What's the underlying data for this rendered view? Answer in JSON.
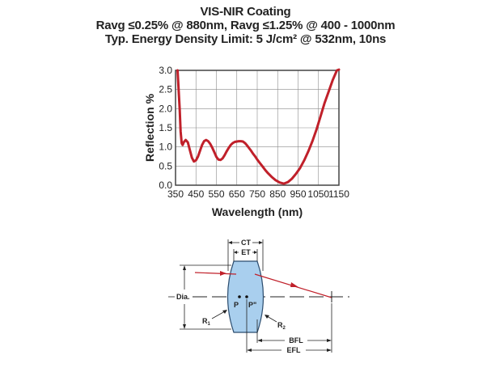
{
  "chart_data": {
    "type": "line",
    "title_lines": [
      "VIS-NIR Coating",
      "Ravg ≤0.25% @ 880nm, Ravg ≤1.25% @ 400 - 1000nm",
      "Typ. Energy Density Limit: 5 J/cm² @ 532nm, 10ns"
    ],
    "xlabel": "Wavelength (nm)",
    "ylabel": "Reflection %",
    "xlim": [
      350,
      1150
    ],
    "ylim": [
      0,
      3.0
    ],
    "x_ticks": [
      "350",
      "450",
      "550",
      "650",
      "750",
      "850",
      "950",
      "1050",
      "1150"
    ],
    "y_ticks": [
      "0.0",
      "0.5",
      "1.0",
      "1.5",
      "2.0",
      "2.5",
      "3.0"
    ],
    "grid": true,
    "line_color": "#c0202a",
    "series": [
      {
        "name": "Reflection",
        "x": [
          360,
          370,
          375,
          380,
          385,
          390,
          400,
          410,
          420,
          430,
          440,
          450,
          460,
          470,
          480,
          490,
          500,
          510,
          520,
          530,
          540,
          550,
          560,
          570,
          580,
          590,
          600,
          610,
          620,
          630,
          640,
          650,
          660,
          670,
          680,
          690,
          700,
          710,
          720,
          730,
          740,
          750,
          760,
          770,
          780,
          790,
          800,
          820,
          840,
          860,
          880,
          900,
          920,
          940,
          960,
          980,
          1000,
          1020,
          1040,
          1060,
          1080,
          1100,
          1120,
          1140,
          1150
        ],
        "y": [
          3.0,
          2.0,
          1.4,
          1.1,
          1.05,
          1.12,
          1.18,
          1.12,
          0.92,
          0.72,
          0.62,
          0.65,
          0.75,
          0.9,
          1.05,
          1.15,
          1.18,
          1.15,
          1.08,
          0.98,
          0.86,
          0.74,
          0.67,
          0.66,
          0.7,
          0.78,
          0.88,
          0.97,
          1.05,
          1.1,
          1.13,
          1.14,
          1.15,
          1.15,
          1.14,
          1.1,
          1.04,
          0.97,
          0.9,
          0.82,
          0.75,
          0.67,
          0.6,
          0.53,
          0.46,
          0.39,
          0.33,
          0.22,
          0.13,
          0.07,
          0.04,
          0.08,
          0.17,
          0.3,
          0.45,
          0.65,
          0.88,
          1.15,
          1.45,
          1.8,
          2.15,
          2.45,
          2.75,
          3.0,
          3.1
        ]
      }
    ]
  },
  "diagram": {
    "labels": {
      "ct": "CT",
      "et": "ET",
      "dia": "Dia.",
      "p": "P",
      "p2": "P\"",
      "r1": "R",
      "r1_sub": "1",
      "r2": "R",
      "r2_sub": "2",
      "bfl": "BFL",
      "efl": "EFL"
    },
    "lens_color": "#a9cfee",
    "ray_color": "#c0202a"
  }
}
